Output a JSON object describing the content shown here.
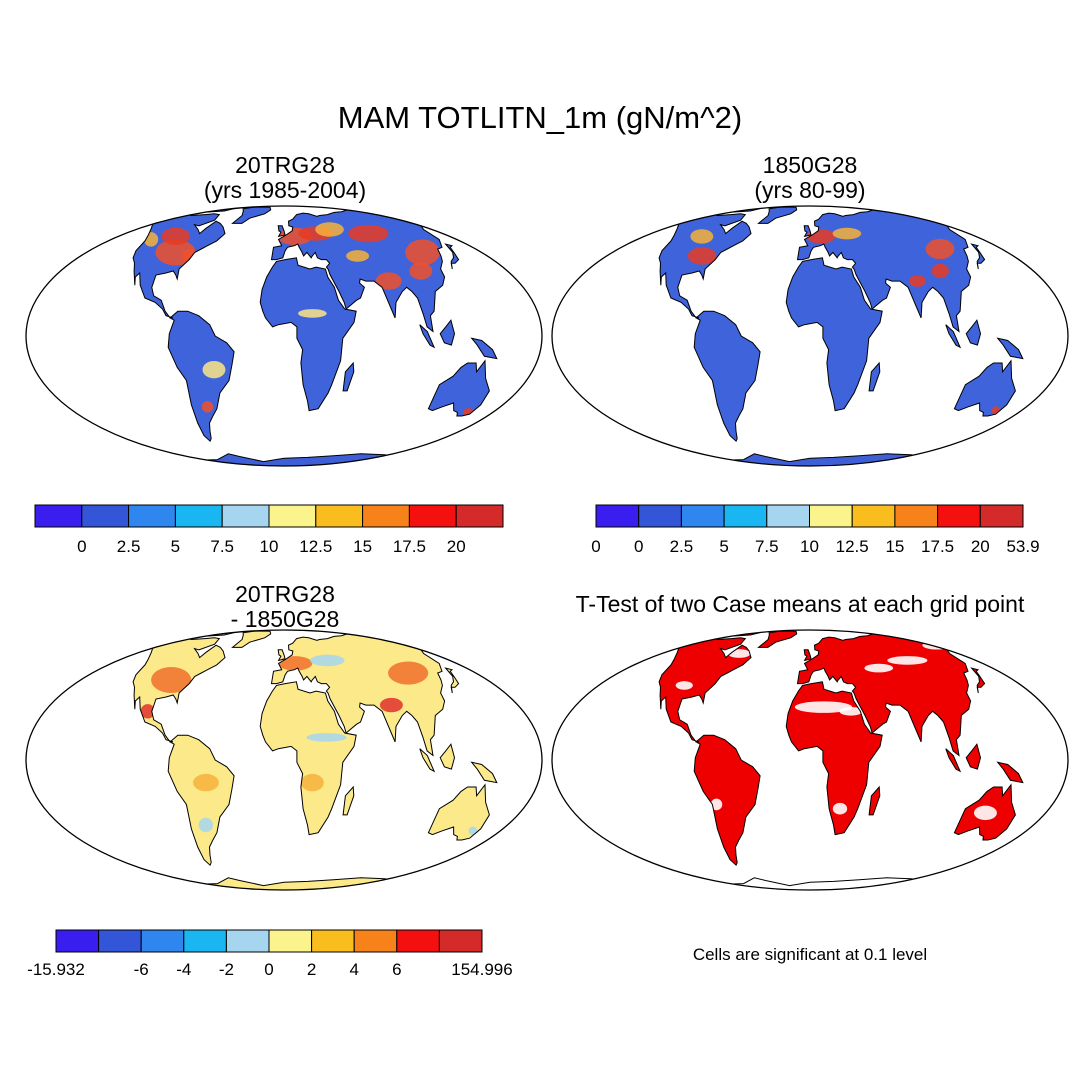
{
  "figure": {
    "title": "MAM TOTLITN_1m (gN/m^2)",
    "note": "Cells are significant at 0.1 level"
  },
  "colors": {
    "land_highlight_case": [
      "#f0502a",
      "#e83b22",
      "#f6b23a",
      "#fbe586"
    ],
    "ocean": "#ffffff",
    "antarctica_case": "#3e5fd6",
    "antarctica_diff": "#fbe98a",
    "significance": "#ee0000"
  },
  "panels": [
    {
      "id": "case1",
      "title_line1": "20TRG28",
      "title_line2": "(yrs 1985-2004)",
      "land_color": "#3f63da",
      "colorbar": {
        "colors": [
          "#3a1ef0",
          "#3355d8",
          "#2f86ef",
          "#19b6f2",
          "#a6d6ef",
          "#fbf38c",
          "#f9be1d",
          "#f7821a",
          "#f51010",
          "#d42a2a"
        ],
        "tick_labels": [
          "0",
          "2.5",
          "5",
          "7.5",
          "10",
          "12.5",
          "15",
          "17.5",
          "20"
        ],
        "label_mode": "inner"
      }
    },
    {
      "id": "case2",
      "title_line1": "1850G28",
      "title_line2": "(yrs 80-99)",
      "land_color": "#3f63da",
      "colorbar": {
        "colors": [
          "#3a1ef0",
          "#3355d8",
          "#2f86ef",
          "#19b6f2",
          "#a6d6ef",
          "#fbf38c",
          "#f9be1d",
          "#f7821a",
          "#f51010",
          "#d42a2a"
        ],
        "tick_labels": [
          "0",
          "0",
          "2.5",
          "5",
          "7.5",
          "10",
          "12.5",
          "15",
          "17.5",
          "20",
          "53.9"
        ],
        "label_mode": "all"
      }
    },
    {
      "id": "diff",
      "title_line1": "20TRG28",
      "title_line2": "- 1850G28",
      "land_color": "#fbe98a",
      "colorbar": {
        "colors": [
          "#3a1ef0",
          "#3355d8",
          "#2f86ef",
          "#19b6f2",
          "#a6d6ef",
          "#fbf38c",
          "#f9be1d",
          "#f7821a",
          "#f51010",
          "#d42a2a"
        ],
        "tick_labels": [
          "-15.932",
          "",
          "-6",
          "-4",
          "-2",
          "0",
          "2",
          "4",
          "6",
          "",
          "154.996"
        ],
        "label_mode": "all"
      }
    },
    {
      "id": "ttest",
      "title_line1": "T-Test of two Case means at each grid point",
      "title_line2": "",
      "land_color": "#ee0000"
    }
  ]
}
